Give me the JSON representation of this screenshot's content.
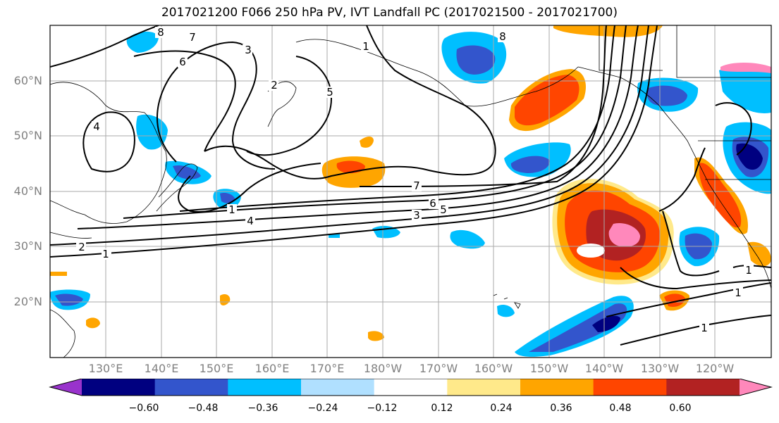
{
  "title": "2017021200 F066 250 hPa PV, IVT Landfall PC (2017021500 - 2017021700)",
  "latitude_labels": [
    "60°N",
    "50°N",
    "40°N",
    "30°N",
    "20°N"
  ],
  "longitude_labels": [
    "130°E",
    "140°E",
    "150°E",
    "160°E",
    "170°E",
    "180°W",
    "170°W",
    "160°W",
    "150°W",
    "140°W",
    "130°W",
    "120°W"
  ],
  "contour_labels": [
    "8",
    "7",
    "6",
    "3",
    "5",
    "4",
    "2",
    "1",
    "7",
    "6",
    "5",
    "3",
    "4",
    "1",
    "2",
    "1",
    "8",
    "1",
    "1",
    "1"
  ],
  "colorbar": {
    "ticks": [
      "−0.60",
      "−0.48",
      "−0.36",
      "−0.24",
      "−0.12",
      "0.12",
      "0.24",
      "0.36",
      "0.48",
      "0.60"
    ],
    "colors": [
      "#9933cc",
      "#000080",
      "#3355cc",
      "#00bfff",
      "#b0e0ff",
      "#ffffff",
      "#ffe98a",
      "#ffa500",
      "#ff4500",
      "#b22222",
      "#ff88bb"
    ]
  }
}
